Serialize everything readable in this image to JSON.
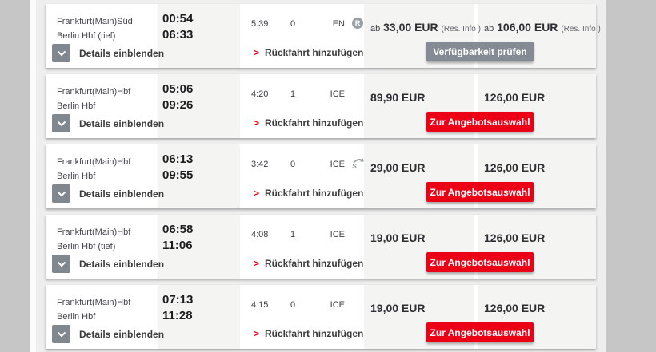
{
  "labels": {
    "details_toggle": "Details einblenden",
    "add_return": "Rückfahrt hinzufügen"
  },
  "colors": {
    "accent_red": "#ec0016",
    "gray_button": "#858b94",
    "icon_gray": "#9aa0a6"
  },
  "icons": {
    "reservation_glyph": "R"
  },
  "rows": [
    {
      "from": "Frankfurt(Main)Süd",
      "to": "Berlin Hbf (tief)",
      "dep": "00:54",
      "arr": "06:33",
      "duration": "5:39",
      "changes": "0",
      "products": "EN",
      "badge": "reservation",
      "price_left": {
        "prefix": "ab",
        "amount": "33,00 EUR",
        "note": "(Res. Info )"
      },
      "price_right": {
        "prefix": "ab",
        "amount": "106,00 EUR",
        "note": "(Res. Info )"
      },
      "action": {
        "label": "Verfügbarkeit prüfen",
        "style": "gray"
      }
    },
    {
      "from": "Frankfurt(Main)Hbf",
      "to": "Berlin Hbf",
      "dep": "05:06",
      "arr": "09:26",
      "duration": "4:20",
      "changes": "1",
      "products": "ICE",
      "badge": null,
      "price_left": {
        "prefix": "",
        "amount": "89,90 EUR",
        "note": ""
      },
      "price_right": {
        "prefix": "",
        "amount": "126,00 EUR",
        "note": ""
      },
      "action": {
        "label": "Zur Angebotsauswahl",
        "style": "red"
      }
    },
    {
      "from": "Frankfurt(Main)Hbf",
      "to": "Berlin Hbf",
      "dep": "06:13",
      "arr": "09:55",
      "duration": "3:42",
      "changes": "0",
      "products": "ICE",
      "badge": "savings",
      "price_left": {
        "prefix": "",
        "amount": "29,00 EUR",
        "note": ""
      },
      "price_right": {
        "prefix": "",
        "amount": "126,00 EUR",
        "note": ""
      },
      "action": {
        "label": "Zur Angebotsauswahl",
        "style": "red"
      }
    },
    {
      "from": "Frankfurt(Main)Hbf",
      "to": "Berlin Hbf (tief)",
      "dep": "06:58",
      "arr": "11:06",
      "duration": "4:08",
      "changes": "1",
      "products": "ICE",
      "badge": null,
      "price_left": {
        "prefix": "",
        "amount": "19,00 EUR",
        "note": ""
      },
      "price_right": {
        "prefix": "",
        "amount": "126,00 EUR",
        "note": ""
      },
      "action": {
        "label": "Zur Angebotsauswahl",
        "style": "red"
      }
    },
    {
      "from": "Frankfurt(Main)Hbf",
      "to": "Berlin Hbf",
      "dep": "07:13",
      "arr": "11:28",
      "duration": "4:15",
      "changes": "0",
      "products": "ICE",
      "badge": null,
      "price_left": {
        "prefix": "",
        "amount": "19,00 EUR",
        "note": ""
      },
      "price_right": {
        "prefix": "",
        "amount": "126,00 EUR",
        "note": ""
      },
      "action": {
        "label": "Zur Angebotsauswahl",
        "style": "red"
      }
    }
  ]
}
